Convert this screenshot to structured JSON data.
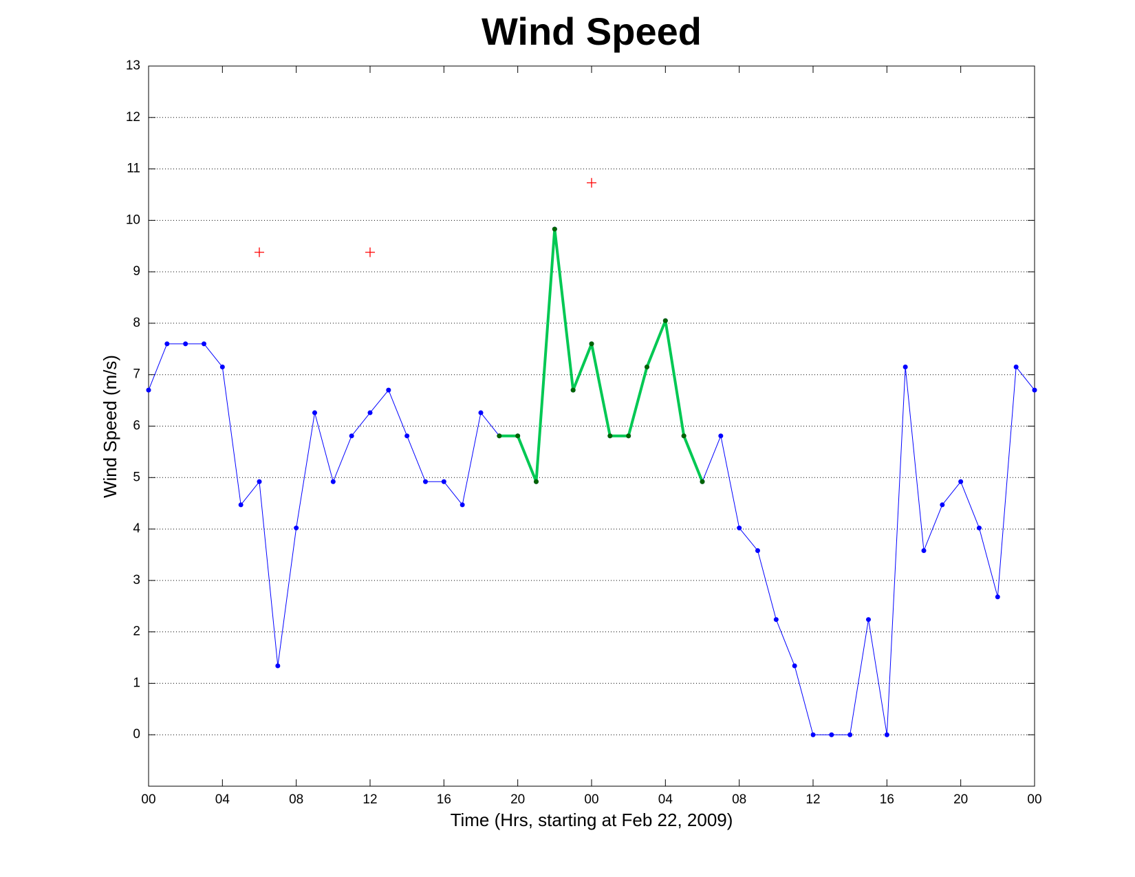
{
  "chart_data": {
    "type": "line",
    "title": "Wind Speed",
    "xlabel": "Time (Hrs, starting at Feb 22, 2009)",
    "ylabel": "Wind Speed (m/s)",
    "xlim": [
      0,
      48
    ],
    "xticks": [
      {
        "value": 0,
        "label": "00"
      },
      {
        "value": 4,
        "label": "04"
      },
      {
        "value": 8,
        "label": "08"
      },
      {
        "value": 12,
        "label": "12"
      },
      {
        "value": 16,
        "label": "16"
      },
      {
        "value": 20,
        "label": "20"
      },
      {
        "value": 24,
        "label": "00"
      },
      {
        "value": 28,
        "label": "04"
      },
      {
        "value": 32,
        "label": "08"
      },
      {
        "value": 36,
        "label": "12"
      },
      {
        "value": 40,
        "label": "16"
      },
      {
        "value": 44,
        "label": "20"
      },
      {
        "value": 48,
        "label": "00"
      }
    ],
    "ylim": [
      -1,
      13
    ],
    "yticks": [
      0,
      1,
      2,
      3,
      4,
      5,
      6,
      7,
      8,
      9,
      10,
      11,
      12,
      13
    ],
    "grid": "y",
    "x": [
      0,
      1,
      2,
      3,
      4,
      5,
      6,
      7,
      8,
      9,
      10,
      11,
      12,
      13,
      14,
      15,
      16,
      17,
      18,
      19,
      20,
      21,
      22,
      23,
      24,
      25,
      26,
      27,
      28,
      29,
      30,
      31,
      32,
      33,
      34,
      35,
      36,
      37,
      38,
      39,
      40,
      41,
      42,
      43,
      44,
      45,
      46,
      47,
      48
    ],
    "series": [
      {
        "color": "#0000ff",
        "line_width": 1,
        "marker": "dot",
        "marker_color": "#0000ff",
        "values": [
          6.7,
          7.6,
          7.6,
          7.6,
          7.15,
          4.47,
          4.92,
          1.34,
          4.02,
          6.26,
          4.92,
          5.81,
          6.26,
          6.7,
          5.81,
          4.92,
          4.92,
          4.47,
          6.26,
          5.81,
          5.81,
          4.92,
          9.83,
          6.7,
          7.6,
          5.81,
          5.81,
          7.15,
          8.05,
          5.81,
          4.92,
          5.81,
          4.02,
          3.58,
          2.24,
          1.34,
          0,
          0,
          0,
          2.24,
          0,
          7.15,
          3.58,
          4.47,
          4.92,
          4.02,
          2.68,
          7.15,
          6.7
        ]
      },
      {
        "color": "#00c853",
        "line_width": 4,
        "marker": "dot",
        "marker_color": "#006400",
        "values": [
          null,
          null,
          null,
          null,
          null,
          null,
          null,
          null,
          null,
          null,
          null,
          null,
          null,
          null,
          null,
          null,
          null,
          null,
          null,
          5.81,
          5.81,
          4.92,
          9.83,
          6.7,
          7.6,
          5.81,
          5.81,
          7.15,
          8.05,
          5.81,
          4.92,
          null,
          null,
          null,
          null,
          null,
          null,
          null,
          null,
          null,
          null,
          null,
          null,
          null,
          null,
          null,
          null,
          null,
          null
        ]
      },
      {
        "color": "#ff0000",
        "line_width": 0,
        "marker": "plus",
        "marker_color": "#ff0000",
        "x": [
          6,
          12,
          24
        ],
        "values": [
          9.38,
          9.38,
          10.73
        ]
      }
    ]
  }
}
